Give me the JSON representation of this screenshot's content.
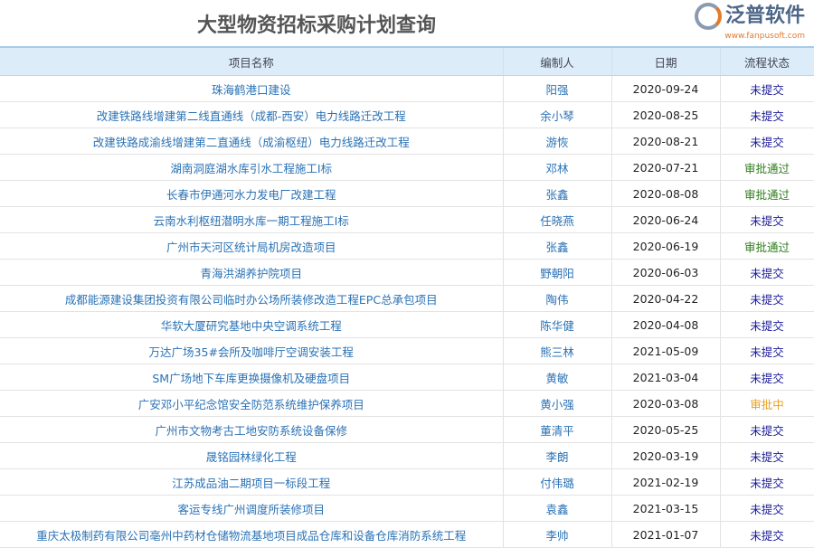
{
  "title": "大型物资招标采购计划查询",
  "columns": [
    "项目名称",
    "编制人",
    "日期",
    "流程状态"
  ],
  "status_colors": {
    "未提交": "#1a1a99",
    "审批通过": "#2e7d1a",
    "审批中": "#e8a020"
  },
  "rows": [
    {
      "name": "珠海鹤港口建设",
      "person": "阳强",
      "date": "2020-09-24",
      "status": "未提交"
    },
    {
      "name": "改建铁路线增建第二线直通线（成都-西安）电力线路迁改工程",
      "person": "余小琴",
      "date": "2020-08-25",
      "status": "未提交"
    },
    {
      "name": "改建铁路成渝线增建第二直通线（成渝枢纽）电力线路迁改工程",
      "person": "游恢",
      "date": "2020-08-21",
      "status": "未提交"
    },
    {
      "name": "湖南洞庭湖水库引水工程施工I标",
      "person": "邓林",
      "date": "2020-07-21",
      "status": "审批通过"
    },
    {
      "name": "长春市伊通河水力发电厂改建工程",
      "person": "张鑫",
      "date": "2020-08-08",
      "status": "审批通过"
    },
    {
      "name": "云南水利枢纽潜明水库一期工程施工I标",
      "person": "任晓燕",
      "date": "2020-06-24",
      "status": "未提交"
    },
    {
      "name": "广州市天河区统计局机房改造项目",
      "person": "张鑫",
      "date": "2020-06-19",
      "status": "审批通过"
    },
    {
      "name": "青海洪湖养护院项目",
      "person": "野朝阳",
      "date": "2020-06-03",
      "status": "未提交"
    },
    {
      "name": "成都能源建设集团投资有限公司临时办公场所装修改造工程EPC总承包项目",
      "person": "陶伟",
      "date": "2020-04-22",
      "status": "未提交"
    },
    {
      "name": "华软大厦研究基地中央空调系统工程",
      "person": "陈华健",
      "date": "2020-04-08",
      "status": "未提交"
    },
    {
      "name": "万达广场35#会所及咖啡厅空调安装工程",
      "person": "熊三林",
      "date": "2021-05-09",
      "status": "未提交"
    },
    {
      "name": "SM广场地下车库更换摄像机及硬盘项目",
      "person": "黄敏",
      "date": "2021-03-04",
      "status": "未提交"
    },
    {
      "name": "广安邓小平纪念馆安全防范系统维护保养项目",
      "person": "黄小强",
      "date": "2020-03-08",
      "status": "审批中"
    },
    {
      "name": "广州市文物考古工地安防系统设备保修",
      "person": "董清平",
      "date": "2020-05-25",
      "status": "未提交"
    },
    {
      "name": "晟铭园林绿化工程",
      "person": "李朗",
      "date": "2020-03-19",
      "status": "未提交"
    },
    {
      "name": "江苏成品油二期项目一标段工程",
      "person": "付伟璐",
      "date": "2021-02-19",
      "status": "未提交"
    },
    {
      "name": "客运专线广州调度所装修项目",
      "person": "袁鑫",
      "date": "2021-03-15",
      "status": "未提交"
    },
    {
      "name": "重庆太极制药有限公司亳州中药材仓储物流基地项目成品仓库和设备仓库消防系统工程",
      "person": "李帅",
      "date": "2021-01-07",
      "status": "未提交"
    }
  ],
  "watermark": {
    "brand": "泛普软件",
    "url": "www.fanpusoft.com"
  }
}
